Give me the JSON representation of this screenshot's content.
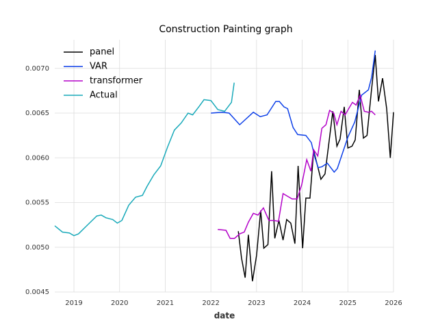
{
  "chart_data": {
    "type": "line",
    "title": "Construction Painting graph",
    "xlabel": "date",
    "xlim": [
      2018.58,
      2026
    ],
    "ylim": [
      0.0045,
      0.00732
    ],
    "xticks": [
      2019,
      2020,
      2021,
      2022,
      2023,
      2024,
      2025,
      2026
    ],
    "yticks": [
      0.0045,
      {
        "value": 0.005,
        "label": "0.0050"
      },
      0.0055,
      {
        "value": 0.006,
        "label": "0.0060"
      },
      0.0065,
      {
        "value": 0.007,
        "label": "0.0070"
      }
    ],
    "grid": true,
    "legend": "upper left",
    "series": [
      {
        "name": "panel",
        "color": "#000000",
        "x": [
          2022.6,
          2022.67,
          2022.75,
          2022.82,
          2022.91,
          2023.0,
          2023.09,
          2023.16,
          2023.25,
          2023.33,
          2023.4,
          2023.49,
          2023.58,
          2023.66,
          2023.75,
          2023.84,
          2023.91,
          2024.01,
          2024.08,
          2024.17,
          2024.25,
          2024.34,
          2024.41,
          2024.5,
          2024.58,
          2024.67,
          2024.76,
          2024.83,
          2024.92,
          2025.0,
          2025.09,
          2025.16,
          2025.25,
          2025.34,
          2025.42,
          2025.51,
          2025.6,
          2025.67,
          2025.76,
          2025.85,
          2025.93,
          2026.0
        ],
        "values": [
          0.00518,
          0.00488,
          0.00466,
          0.00514,
          0.00462,
          0.00491,
          0.00541,
          0.00499,
          0.00503,
          0.00585,
          0.0051,
          0.0053,
          0.00508,
          0.00531,
          0.00527,
          0.00504,
          0.00591,
          0.00499,
          0.00555,
          0.00555,
          0.00608,
          0.0059,
          0.00576,
          0.00582,
          0.00615,
          0.00652,
          0.00613,
          0.00621,
          0.00657,
          0.00611,
          0.00613,
          0.0062,
          0.00676,
          0.00622,
          0.00625,
          0.00672,
          0.00715,
          0.00663,
          0.00689,
          0.00655,
          0.006,
          0.00651
        ]
      },
      {
        "name": "VAR",
        "color": "#0c3fe8",
        "x": [
          2022.0,
          2022.25,
          2022.4,
          2022.63,
          2022.93,
          2023.08,
          2023.23,
          2023.42,
          2023.5,
          2023.6,
          2023.68,
          2023.8,
          2023.9,
          2024.08,
          2024.2,
          2024.28,
          2024.35,
          2024.43,
          2024.55,
          2024.7,
          2024.77,
          2025.0,
          2025.15,
          2025.3,
          2025.45,
          2025.52,
          2025.6
        ],
        "values": [
          0.0065,
          0.00651,
          0.0065,
          0.00637,
          0.00651,
          0.00646,
          0.00648,
          0.00663,
          0.00663,
          0.00657,
          0.00655,
          0.00634,
          0.00626,
          0.00625,
          0.00617,
          0.006,
          0.00589,
          0.0059,
          0.00594,
          0.00584,
          0.00588,
          0.00623,
          0.0064,
          0.0067,
          0.00676,
          0.0069,
          0.0072
        ]
      },
      {
        "name": "transformer",
        "color": "#b300c8",
        "x": [
          2022.15,
          2022.33,
          2022.42,
          2022.52,
          2022.63,
          2022.73,
          2022.82,
          2022.93,
          2023.03,
          2023.15,
          2023.27,
          2023.38,
          2023.48,
          2023.58,
          2023.68,
          2023.78,
          2023.89,
          2023.99,
          2024.1,
          2024.19,
          2024.25,
          2024.34,
          2024.43,
          2024.52,
          2024.6,
          2024.69,
          2024.76,
          2024.85,
          2024.94,
          2025.03,
          2025.1,
          2025.18,
          2025.27,
          2025.36,
          2025.45,
          2025.52,
          2025.6
        ],
        "values": [
          0.0052,
          0.00519,
          0.0051,
          0.0051,
          0.00515,
          0.00517,
          0.00528,
          0.00538,
          0.00536,
          0.00544,
          0.0053,
          0.0053,
          0.00529,
          0.0056,
          0.00557,
          0.00554,
          0.00554,
          0.0057,
          0.00598,
          0.00585,
          0.00609,
          0.00602,
          0.00633,
          0.00637,
          0.00653,
          0.0065,
          0.00637,
          0.00652,
          0.00648,
          0.00656,
          0.00662,
          0.00659,
          0.0067,
          0.00652,
          0.00651,
          0.00652,
          0.00648
        ]
      },
      {
        "name": "Actual",
        "color": "#17a9b9",
        "x": [
          2018.58,
          2018.75,
          2018.9,
          2019.0,
          2019.1,
          2019.3,
          2019.5,
          2019.6,
          2019.7,
          2019.85,
          2019.95,
          2020.05,
          2020.2,
          2020.35,
          2020.5,
          2020.6,
          2020.75,
          2020.9,
          2021.05,
          2021.2,
          2021.35,
          2021.5,
          2021.6,
          2021.75,
          2021.85,
          2022.0,
          2022.15,
          2022.3,
          2022.45,
          2022.51
        ],
        "values": [
          0.00524,
          0.00517,
          0.00516,
          0.00513,
          0.00515,
          0.00525,
          0.00535,
          0.00536,
          0.00533,
          0.00531,
          0.00527,
          0.0053,
          0.00547,
          0.00556,
          0.00558,
          0.00568,
          0.00581,
          0.00591,
          0.00612,
          0.00631,
          0.00639,
          0.0065,
          0.00648,
          0.00658,
          0.00665,
          0.00664,
          0.00654,
          0.00652,
          0.00662,
          0.00684
        ]
      }
    ]
  }
}
